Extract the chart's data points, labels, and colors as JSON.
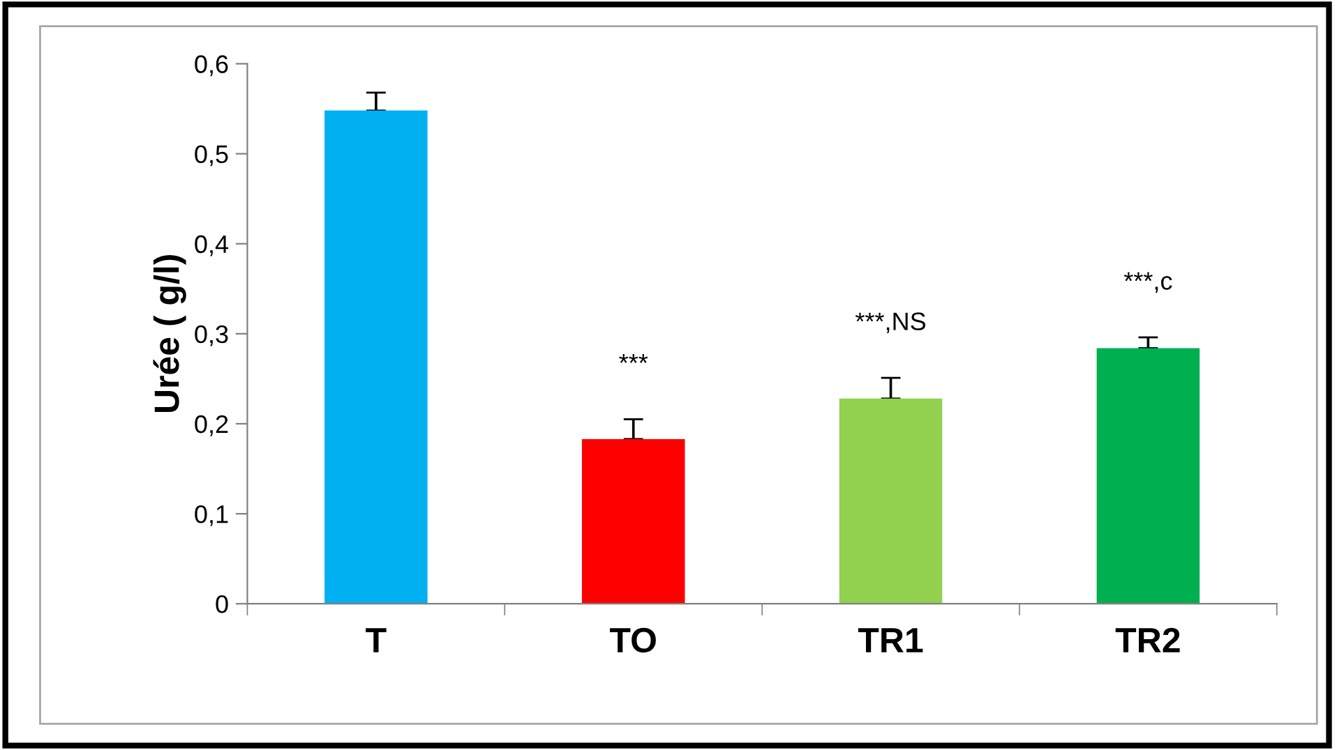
{
  "chart_data": {
    "type": "bar",
    "ylabel": "Urée ( g/l)",
    "categories": [
      "T",
      "TO",
      "TR1",
      "TR2"
    ],
    "values": [
      0.548,
      0.183,
      0.228,
      0.284
    ],
    "colors": [
      "#00b0f0",
      "#ff0000",
      "#92d050",
      "#00b050"
    ],
    "errors": [
      0.02,
      0.022,
      0.023,
      0.012
    ],
    "ylim": [
      0,
      0.6
    ],
    "yticks": [
      {
        "value": 0,
        "label": "0"
      },
      {
        "value": 0.1,
        "label": "0,1"
      },
      {
        "value": 0.2,
        "label": "0,2"
      },
      {
        "value": 0.3,
        "label": "0,3"
      },
      {
        "value": 0.4,
        "label": "0,4"
      },
      {
        "value": 0.5,
        "label": "0,5"
      },
      {
        "value": 0.6,
        "label": "0,6"
      }
    ],
    "annotations": [
      "***",
      "***,NS",
      "***,c"
    ],
    "grid": false
  }
}
